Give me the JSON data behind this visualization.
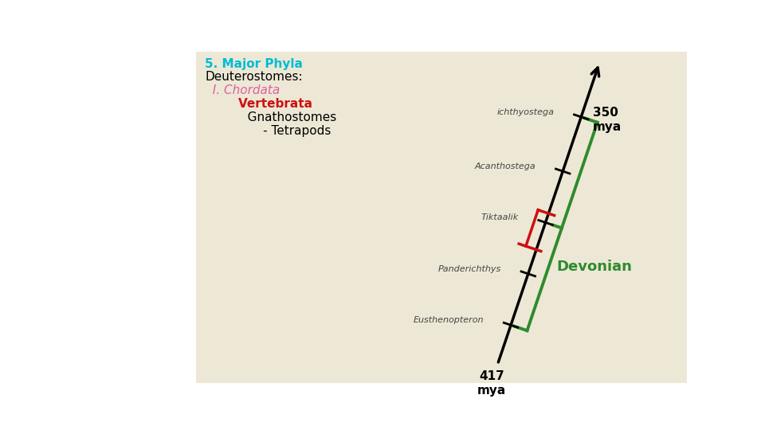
{
  "bg_color": "#ede8d5",
  "white_bg": "#ffffff",
  "title1": "5. Major Phyla",
  "title1_color": "#00bcd4",
  "title2": "Deuterostomes:",
  "title2_color": "#000000",
  "title3": "  I. Chordata",
  "title3_color": "#e060a0",
  "title4": "        Vertebrata",
  "title4_color": "#cc1111",
  "title5": "           Gnathostomes",
  "title5_color": "#000000",
  "title6": "               - Tetrapods",
  "title6_color": "#000000",
  "label_350": "350\nmya",
  "label_417": "417\nmya",
  "label_devonian": "Devonian",
  "label_devonian_color": "#2e8b2e",
  "species": [
    "ichthyostega",
    "Acanthostega",
    "Tiktaalik",
    "Panderichthys",
    "Eusthenopteron"
  ],
  "timeline_color": "#000000",
  "green_bracket_color": "#2e8b2e",
  "red_line_color": "#cc1111",
  "font_size_title": 11,
  "font_size_mya": 11,
  "font_size_devonian": 13,
  "font_size_species": 8
}
